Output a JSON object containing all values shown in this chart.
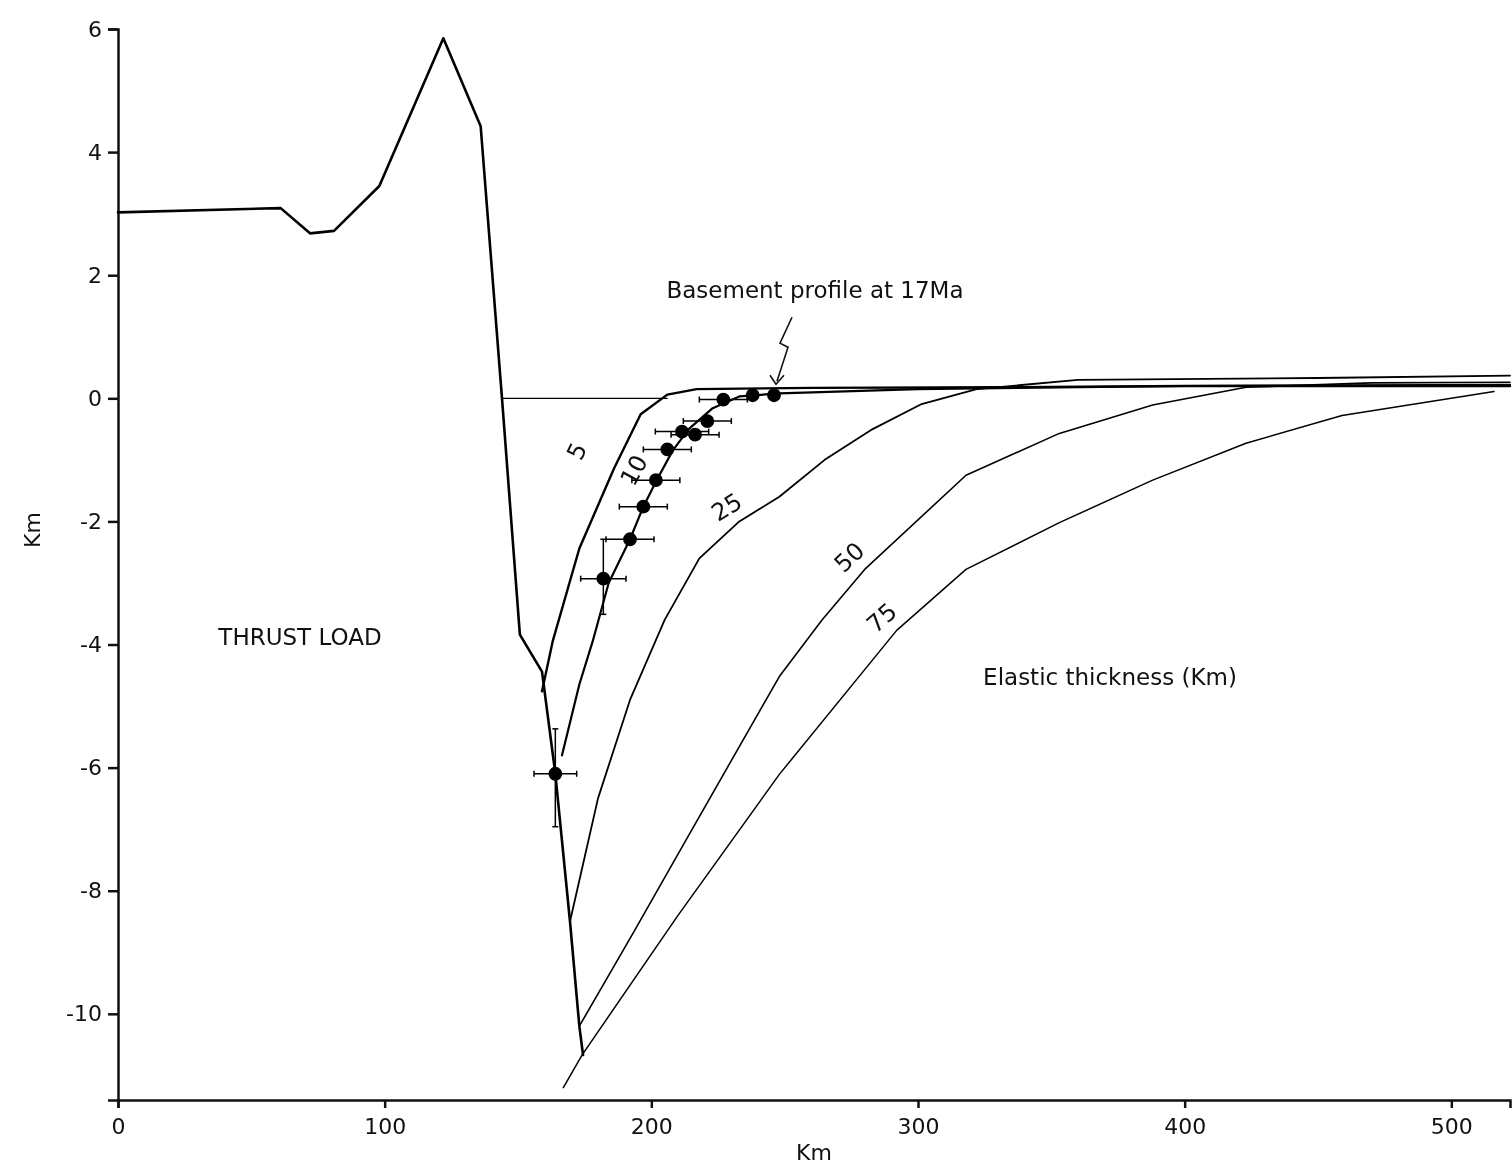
{
  "chart_data": {
    "type": "line",
    "xlabel": "Km",
    "ylabel": "Km",
    "xlim": [
      0,
      522
    ],
    "xticks": [
      0,
      100,
      200,
      300,
      400,
      500
    ],
    "ylim": [
      -11.4,
      6
    ],
    "yticks": [
      6,
      4,
      2,
      0,
      -2,
      -4,
      -6,
      -8,
      -10
    ],
    "grid": false,
    "marker": "none",
    "line_style": "solid",
    "annotations": [
      "Basement profile at 17Ma",
      "THRUST LOAD",
      "Elastic thickness (Km)"
    ],
    "series": [
      {
        "color": "#000000",
        "x": [
          0,
          61,
          72,
          81,
          98,
          122,
          136,
          144,
          150.7,
          159,
          164,
          169.5,
          173,
          174.4
        ],
        "values": [
          3.02,
          3.09,
          2.68,
          2.72,
          3.45,
          5.85,
          4.42,
          0.0,
          -3.84,
          -4.44,
          -6.1,
          -8.5,
          -10.2,
          -10.67
        ]
      },
      {
        "color": "#000000",
        "x": [
          144,
          206
        ],
        "values": [
          0,
          0
        ]
      },
      {
        "name": "5",
        "color": "#000000",
        "x": [
          159,
          163,
          173,
          186,
          196,
          206,
          217,
          260,
          330,
          400,
          522
        ],
        "values": [
          -4.76,
          -3.95,
          -2.44,
          -1.14,
          -0.26,
          0.06,
          0.15,
          0.17,
          0.18,
          0.2,
          0.2
        ]
      },
      {
        "name": "10",
        "color": "#000000",
        "x": [
          166.5,
          173,
          178,
          184,
          192,
          197,
          202,
          208,
          214,
          223,
          233,
          248,
          300,
          400,
          522
        ],
        "values": [
          -5.8,
          -4.65,
          -3.95,
          -3.0,
          -2.29,
          -1.76,
          -1.33,
          -0.85,
          -0.5,
          -0.16,
          0.03,
          0.08,
          0.15,
          0.2,
          0.22
        ]
      },
      {
        "name": "25",
        "color": "#000000",
        "x": [
          169.5,
          180,
          192,
          205,
          218,
          233,
          248,
          265,
          283,
          301,
          322,
          360,
          450,
          522
        ],
        "values": [
          -8.5,
          -6.5,
          -4.9,
          -3.6,
          -2.6,
          -2.0,
          -1.6,
          -1.0,
          -0.5,
          -0.1,
          0.15,
          0.3,
          0.33,
          0.37
        ]
      },
      {
        "name": "50",
        "color": "#000000",
        "x": [
          173,
          193,
          214,
          248,
          264,
          280,
          318,
          353,
          388,
          423,
          470,
          522
        ],
        "values": [
          -10.2,
          -8.7,
          -7.1,
          -4.52,
          -3.6,
          -2.78,
          -1.25,
          -0.57,
          -0.11,
          0.18,
          0.25,
          0.26
        ]
      },
      {
        "name": "75",
        "color": "#000000",
        "x": [
          167,
          174,
          210,
          248,
          292,
          318,
          353,
          388,
          423,
          459,
          516
        ],
        "values": [
          -11.2,
          -10.67,
          -8.4,
          -6.11,
          -3.77,
          -2.78,
          -2.02,
          -1.33,
          -0.73,
          -0.28,
          0.11
        ]
      },
      {
        "type": "scatter",
        "color": "#000000",
        "marker": "circle",
        "x": [
          164,
          182,
          192,
          197,
          201.7,
          206,
          211.5,
          216.4,
          221,
          227,
          238,
          246
        ],
        "values": [
          -6.1,
          -2.93,
          -2.29,
          -1.76,
          -1.33,
          -0.83,
          -0.54,
          -0.59,
          -0.37,
          -0.02,
          0.05,
          0.05
        ],
        "errors": [
          [
            -6.96,
            -5.37
          ],
          [
            -3.51,
            -2.29
          ],
          null,
          null,
          null,
          null,
          null,
          null,
          null,
          null,
          null,
          null
        ],
        "xerrors": [
          8,
          8.5,
          9,
          9,
          9,
          9,
          10,
          9,
          9,
          9,
          null,
          null
        ]
      }
    ]
  }
}
